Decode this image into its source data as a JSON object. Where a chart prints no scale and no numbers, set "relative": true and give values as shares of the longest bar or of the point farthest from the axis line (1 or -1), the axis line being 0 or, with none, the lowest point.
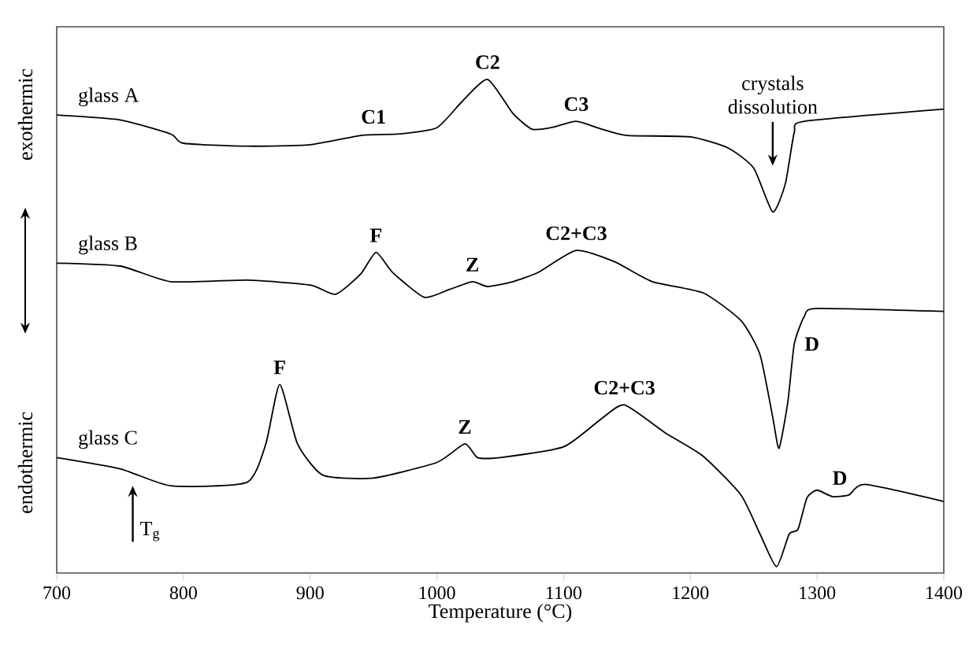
{
  "chart_data": {
    "type": "line",
    "xlabel": "Temperature (°C)",
    "relative": true,
    "xlim": [
      700,
      1400
    ],
    "xticks": [
      700,
      800,
      900,
      1000,
      1100,
      1200,
      1300,
      1400
    ],
    "series": [
      {
        "name": "glass A",
        "color": "#000000",
        "x": [
          700,
          750,
          790,
          800,
          850,
          900,
          940,
          970,
          1000,
          1020,
          1040,
          1060,
          1075,
          1090,
          1110,
          1130,
          1150,
          1200,
          1230,
          1250,
          1265,
          1275,
          1282,
          1290,
          1400
        ],
        "values": [
          0.927,
          0.917,
          0.888,
          0.869,
          0.863,
          0.866,
          0.885,
          0.888,
          0.901,
          0.955,
          1.0,
          0.93,
          0.898,
          0.901,
          0.914,
          0.898,
          0.885,
          0.882,
          0.859,
          0.818,
          0.728,
          0.786,
          0.891,
          0.914,
          0.939
        ]
      },
      {
        "name": "glass B",
        "color": "#000000",
        "x": [
          700,
          750,
          790,
          850,
          900,
          920,
          940,
          952,
          965,
          990,
          1010,
          1028,
          1040,
          1060,
          1080,
          1110,
          1140,
          1170,
          1210,
          1240,
          1255,
          1265,
          1270,
          1277,
          1282,
          1290,
          1300,
          1400
        ],
        "values": [
          0.623,
          0.617,
          0.585,
          0.588,
          0.578,
          0.559,
          0.601,
          0.645,
          0.604,
          0.553,
          0.569,
          0.585,
          0.575,
          0.585,
          0.604,
          0.649,
          0.626,
          0.585,
          0.562,
          0.505,
          0.435,
          0.307,
          0.243,
          0.339,
          0.457,
          0.514,
          0.53,
          0.524
        ]
      },
      {
        "name": "glass C",
        "color": "#000000",
        "x": [
          700,
          750,
          790,
          850,
          865,
          876,
          890,
          910,
          950,
          1000,
          1022,
          1032,
          1050,
          1100,
          1130,
          1148,
          1180,
          1210,
          1240,
          1255,
          1268,
          1278,
          1285,
          1292,
          1300,
          1312,
          1325,
          1338,
          1400
        ],
        "values": [
          0.224,
          0.201,
          0.166,
          0.173,
          0.252,
          0.374,
          0.252,
          0.188,
          0.182,
          0.214,
          0.252,
          0.224,
          0.224,
          0.246,
          0.304,
          0.332,
          0.275,
          0.227,
          0.147,
          0.067,
          0.0,
          0.067,
          0.077,
          0.141,
          0.157,
          0.144,
          0.147,
          0.169,
          0.134
        ]
      }
    ],
    "annotations": [
      {
        "text": "C1",
        "x": 950,
        "y": 0.888
      },
      {
        "text": "C2",
        "x": 1040,
        "y": 1.0
      },
      {
        "text": "C3",
        "x": 1110,
        "y": 0.914
      },
      "crystals dissolution",
      {
        "text": "F",
        "x": 952,
        "y": 0.645
      },
      {
        "text": "Z",
        "x": 1028,
        "y": 0.585
      },
      {
        "text": "C2+C3",
        "x": 1110,
        "y": 0.649
      },
      {
        "text": "D",
        "x": 1282,
        "y": 0.457
      },
      {
        "text": "F",
        "x": 876,
        "y": 0.374
      },
      {
        "text": "Z",
        "x": 1022,
        "y": 0.252
      },
      {
        "text": "C2+C3",
        "x": 1148,
        "y": 0.332
      },
      {
        "text": "D",
        "x": 1318,
        "y": 0.147
      },
      {
        "text": "T$_{g}$",
        "x": 760,
        "y": 0.201
      },
      "exothermic",
      "endothermic"
    ]
  }
}
